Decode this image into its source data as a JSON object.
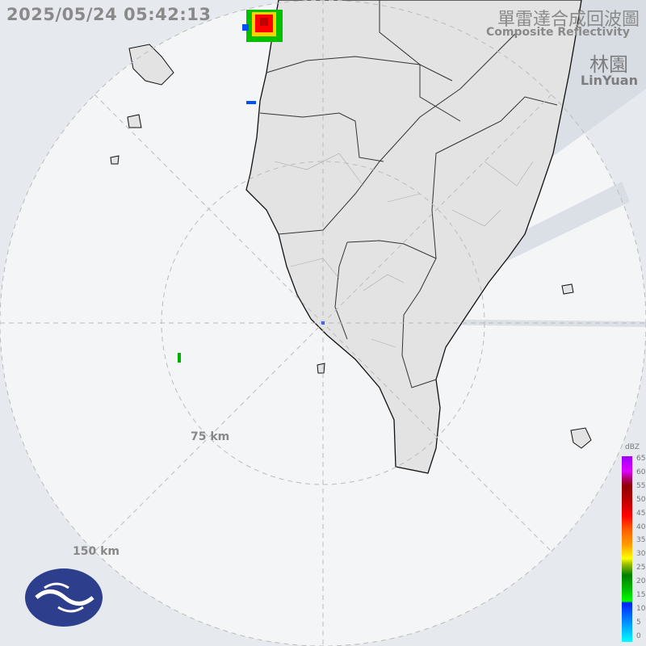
{
  "header": {
    "timestamp": "2025/05/24 05:42:13",
    "title_zh": "單雷達合成回波圖",
    "title_en": "Composite Reflectivity",
    "site_zh": "林園",
    "site_en": "LinYuan"
  },
  "rings": {
    "inner": "75 km",
    "outer": "150 km"
  },
  "legend": {
    "unit": "dBZ",
    "ticks": [
      "65",
      "60",
      "55",
      "50",
      "45",
      "40",
      "35",
      "30",
      "25",
      "20",
      "15",
      "10",
      "5",
      "0"
    ]
  },
  "colors": {
    "background": "#e6eaef",
    "land": "#e3e3e3",
    "coast": "#111111",
    "echo_red": "#ff0000",
    "echo_green": "#00c000"
  },
  "logo": {
    "name": "central-weather-administration-logo"
  }
}
